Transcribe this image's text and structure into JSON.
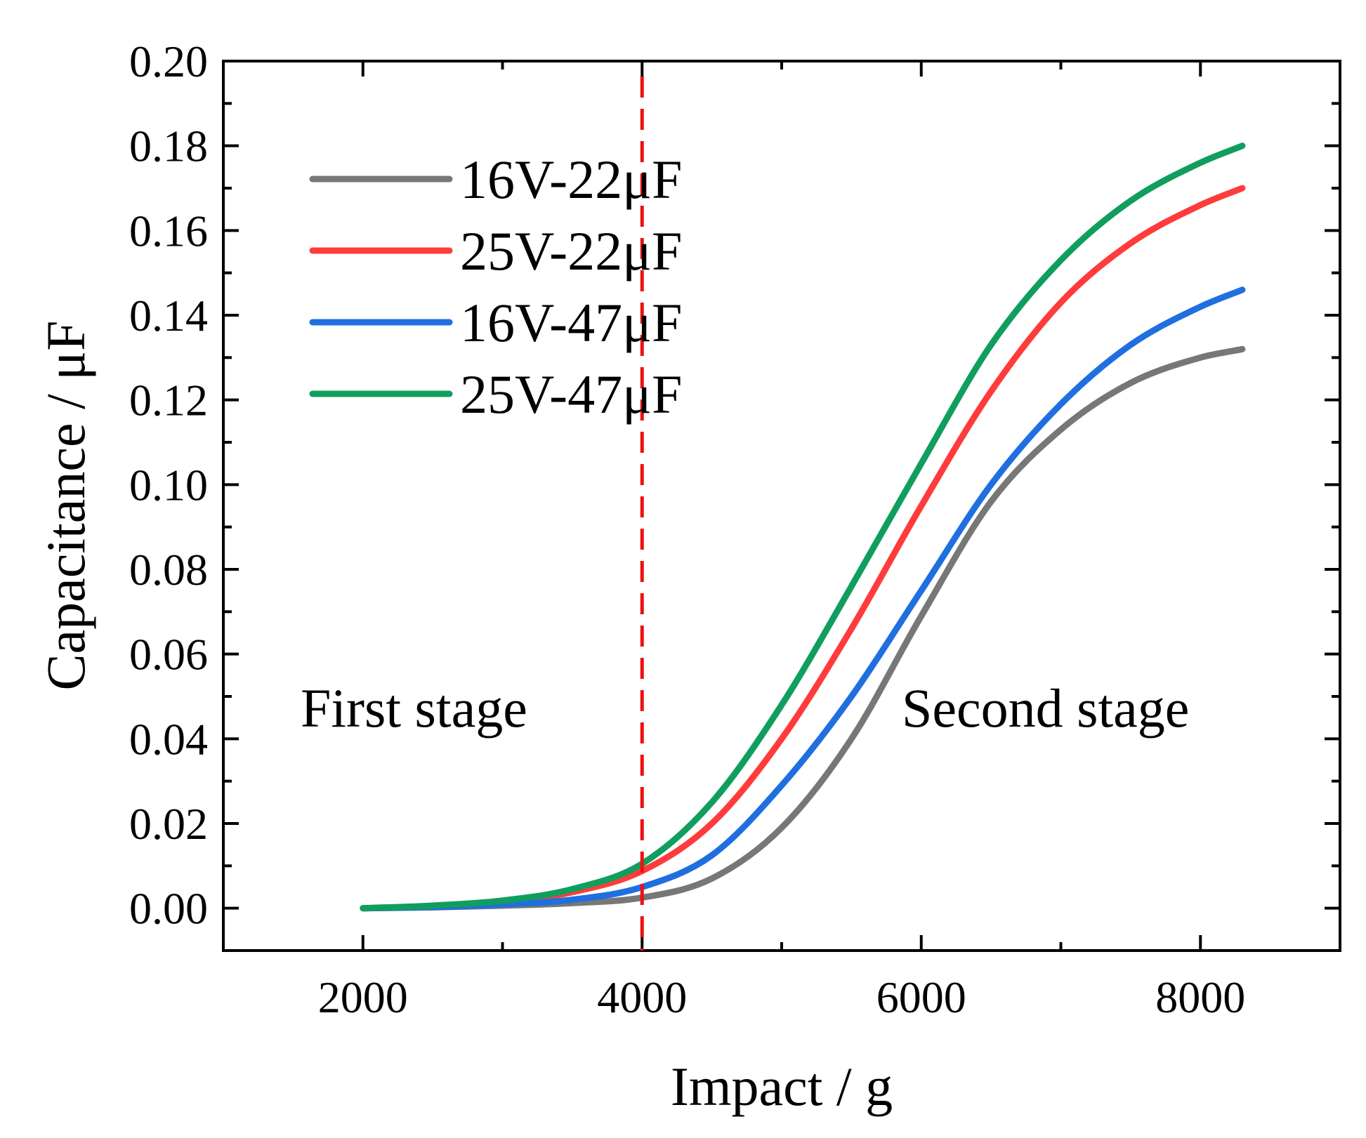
{
  "chart_data": {
    "type": "line",
    "xlabel": "Impact / g",
    "ylabel": "Capacitance / μF",
    "xlim": [
      1000,
      9000
    ],
    "ylim": [
      -0.01,
      0.2
    ],
    "x_ticks": [
      2000,
      4000,
      6000,
      8000
    ],
    "x_tick_labels": [
      "2000",
      "4000",
      "6000",
      "8000"
    ],
    "y_ticks": [
      0.0,
      0.02,
      0.04,
      0.06,
      0.08,
      0.1,
      0.12,
      0.14,
      0.16,
      0.18,
      0.2
    ],
    "y_tick_labels": [
      "0.00",
      "0.02",
      "0.04",
      "0.06",
      "0.08",
      "0.10",
      "0.12",
      "0.14",
      "0.16",
      "0.18",
      "0.20"
    ],
    "x": [
      2000,
      2500,
      3000,
      3500,
      4000,
      4500,
      5000,
      5500,
      6000,
      6500,
      7000,
      7500,
      8000,
      8300
    ],
    "series": [
      {
        "name": "16V-22μF",
        "color": "#777777",
        "values": [
          0.0,
          0.0002,
          0.0006,
          0.0012,
          0.0025,
          0.007,
          0.019,
          0.04,
          0.069,
          0.096,
          0.113,
          0.124,
          0.13,
          0.132
        ]
      },
      {
        "name": "25V-22μF",
        "color": "#ff3b3b",
        "values": [
          0.0,
          0.0005,
          0.0015,
          0.0038,
          0.0088,
          0.02,
          0.04,
          0.066,
          0.095,
          0.122,
          0.143,
          0.157,
          0.166,
          0.17
        ]
      },
      {
        "name": "16V-47μF",
        "color": "#1f6fe0",
        "values": [
          0.0,
          0.0003,
          0.0009,
          0.002,
          0.005,
          0.0125,
          0.029,
          0.05,
          0.075,
          0.1,
          0.119,
          0.133,
          0.142,
          0.146
        ]
      },
      {
        "name": "25V-47μF",
        "color": "#109e5f",
        "values": [
          0.0,
          0.0006,
          0.0018,
          0.0045,
          0.0105,
          0.025,
          0.048,
          0.076,
          0.105,
          0.133,
          0.153,
          0.167,
          0.176,
          0.18
        ]
      }
    ],
    "divider": {
      "x": 4000,
      "color": "#ee1111",
      "style": "dashed"
    },
    "annotations": [
      "First stage",
      "Second stage"
    ],
    "legend_position": "top-left",
    "grid": false
  }
}
